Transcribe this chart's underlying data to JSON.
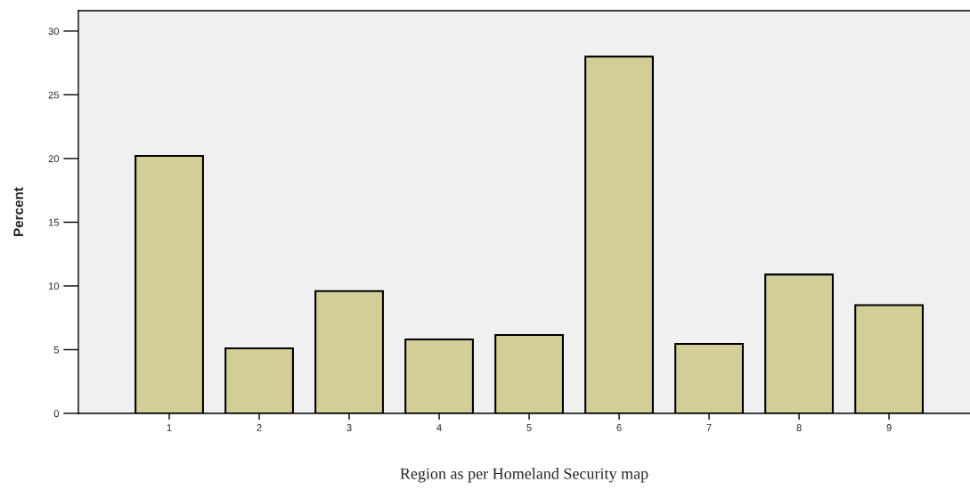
{
  "chart_data": {
    "type": "bar",
    "xlabel": "Region as per Homeland Security map",
    "ylabel": "Percent",
    "categories": [
      "1",
      "2",
      "3",
      "4",
      "5",
      "6",
      "7",
      "8",
      "9"
    ],
    "values": [
      20.2,
      5.1,
      9.6,
      5.8,
      6.15,
      28.0,
      5.45,
      10.9,
      8.5
    ],
    "color": "#d3ce97",
    "ylim": [
      0,
      31.6
    ],
    "yticks": [
      0,
      5,
      10,
      15,
      20,
      25,
      30
    ],
    "grid": false
  }
}
